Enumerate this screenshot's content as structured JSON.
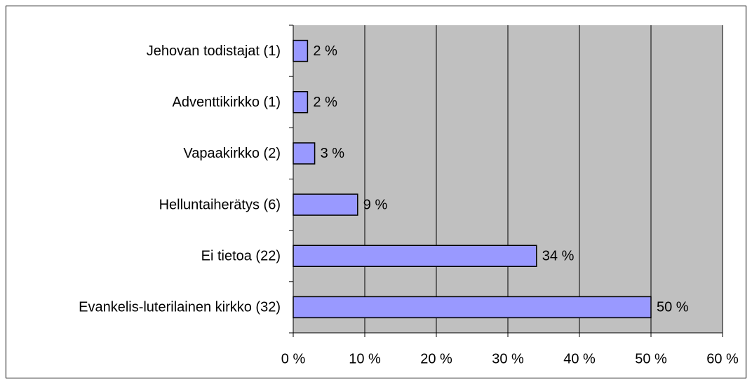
{
  "chart_data": {
    "type": "bar",
    "orientation": "horizontal",
    "categories": [
      "Jehovan todistajat (1)",
      "Adventtikirkko (1)",
      "Vapaakirkko (2)",
      "Helluntaiherätys (6)",
      "Ei tietoa (22)",
      "Evankelis-luterilainen kirkko (32)"
    ],
    "values": [
      2,
      2,
      3,
      9,
      34,
      50
    ],
    "value_labels": [
      "2 %",
      "2 %",
      "3 %",
      "9 %",
      "34 %",
      "50 %"
    ],
    "color": "#9999ff",
    "xlim": [
      0,
      60
    ],
    "xticks": [
      {
        "value": 0,
        "label": "0 %"
      },
      {
        "value": 10,
        "label": "10 %"
      },
      {
        "value": 20,
        "label": "20 %"
      },
      {
        "value": 30,
        "label": "30 %"
      },
      {
        "value": 40,
        "label": "40 %"
      },
      {
        "value": 50,
        "label": "50 %"
      },
      {
        "value": 60,
        "label": "60 %"
      }
    ],
    "grid": true
  }
}
